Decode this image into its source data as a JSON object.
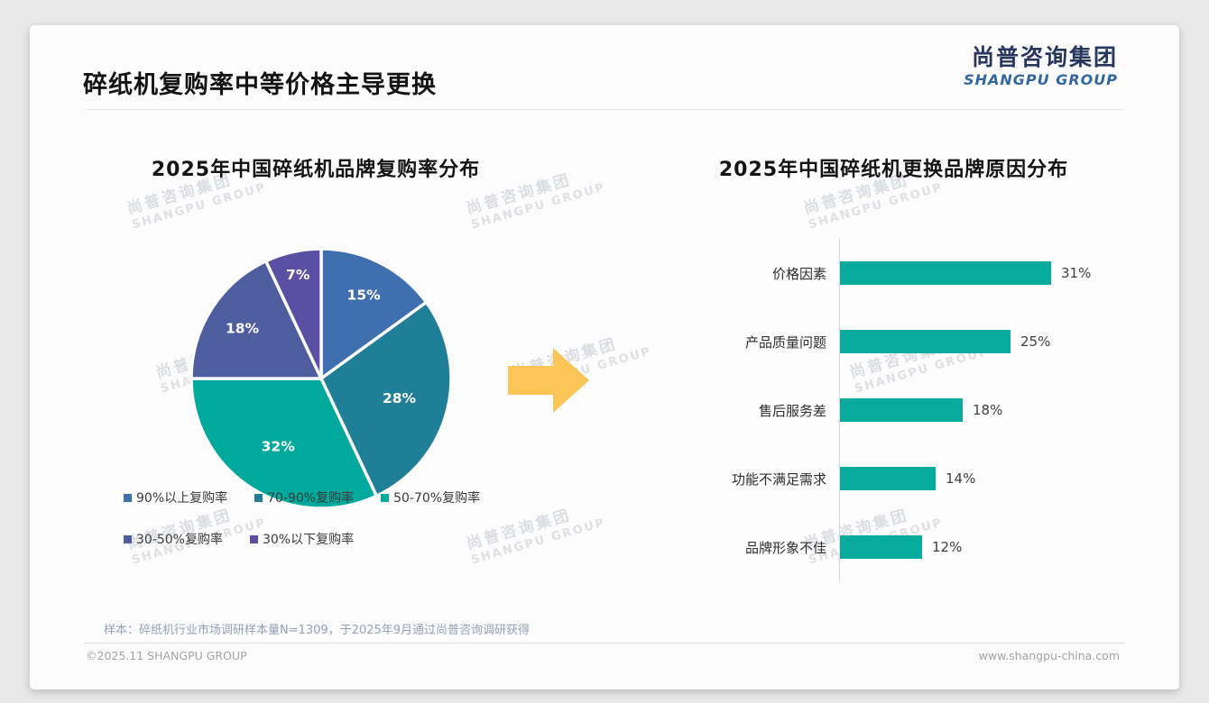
{
  "page": {
    "title": "碎纸机复购率中等价格主导更换",
    "logo": {
      "cn": "尚普咨询集团",
      "en": "SHANGPU GROUP"
    },
    "watermark": {
      "cn": "尚普咨询集团",
      "en": "SHANGPU GROUP"
    },
    "footnote": "样本：碎纸机行业市场调研样本量N=1309，于2025年9月通过尚普咨询调研获得",
    "footer_left": "©2025.11 SHANGPU GROUP",
    "footer_right": "www.shangpu-china.com"
  },
  "colors": {
    "pie": [
      "#3f6fae",
      "#1e7f97",
      "#00a99c",
      "#4d5d9e",
      "#5b4fa3"
    ],
    "bar": "#07ab9e",
    "arrow": "#fbc557",
    "logo_cn": "#27375f",
    "logo_en": "#33679f"
  },
  "chart_data": [
    {
      "type": "pie",
      "title": "2025年中国碎纸机品牌复购率分布",
      "labels": [
        "90%以上复购率",
        "70-90%复购率",
        "50-70%复购率",
        "30-50%复购率",
        "30%以下复购率"
      ],
      "values": [
        15,
        28,
        32,
        18,
        7
      ],
      "slice_label_format": "percent",
      "colors": [
        "#3f6fae",
        "#1e7f97",
        "#00a99c",
        "#4d5d9e",
        "#5b4fa3"
      ],
      "legend_position": "bottom",
      "start_angle": "top",
      "direction": "clockwise"
    },
    {
      "type": "bar",
      "orientation": "horizontal",
      "title": "2025年中国碎纸机更换品牌原因分布",
      "categories": [
        "价格因素",
        "产品质量问题",
        "售后服务差",
        "功能不满足需求",
        "品牌形象不佳"
      ],
      "values": [
        31,
        25,
        18,
        14,
        12
      ],
      "value_suffix": "%",
      "bar_color": "#07ab9e",
      "xlim": [
        0,
        33
      ],
      "grid": false,
      "axis_line": "left"
    }
  ]
}
